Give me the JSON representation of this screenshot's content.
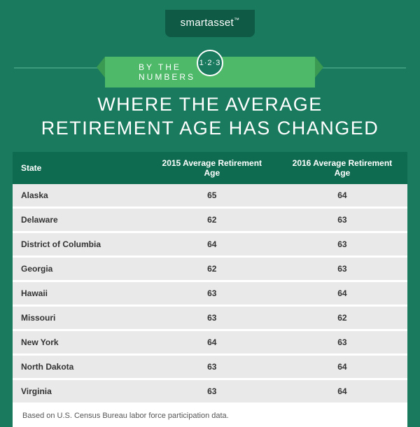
{
  "brand": {
    "name": "smartasset",
    "tm": "™"
  },
  "ribbon": {
    "left": "BY THE",
    "right": "NUMBERS",
    "circle": "1·2·3"
  },
  "title": {
    "line1": "WHERE THE AVERAGE",
    "line2": "RETIREMENT AGE HAS CHANGED"
  },
  "table": {
    "columns": [
      "State",
      "2015 Average Retirement Age",
      "2016 Average Retirement Age"
    ],
    "rows": [
      [
        "Alaska",
        "65",
        "64"
      ],
      [
        "Delaware",
        "62",
        "63"
      ],
      [
        "District of Columbia",
        "64",
        "63"
      ],
      [
        "Georgia",
        "62",
        "63"
      ],
      [
        "Hawaii",
        "63",
        "64"
      ],
      [
        "Missouri",
        "63",
        "62"
      ],
      [
        "New York",
        "64",
        "63"
      ],
      [
        "North Dakota",
        "63",
        "64"
      ],
      [
        "Virginia",
        "63",
        "64"
      ]
    ]
  },
  "footnote": "Based on U.S. Census Bureau labor force participation data.",
  "colors": {
    "page_bg": "#1a7a5e",
    "header_bg": "#0f6b50",
    "row_bg": "#e9e9e9",
    "ribbon_bg": "#4fb96a",
    "logo_bg": "#0f5a44"
  }
}
